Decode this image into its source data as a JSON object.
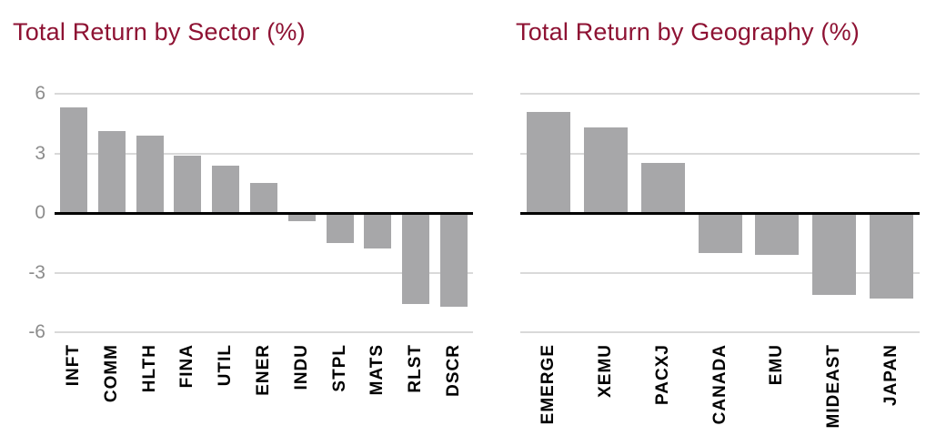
{
  "chart_data": [
    {
      "type": "bar",
      "title": "Total Return by Sector (%)",
      "categories": [
        "INFT",
        "COMM",
        "HLTH",
        "FINA",
        "UTIL",
        "ENER",
        "INDU",
        "STPL",
        "MATS",
        "RLST",
        "DSCR"
      ],
      "values": [
        5.3,
        4.1,
        3.9,
        2.9,
        2.4,
        1.5,
        -0.4,
        -1.5,
        -1.8,
        -4.6,
        -4.7
      ],
      "xlabel": "",
      "ylabel": "",
      "ylim": [
        -6,
        6
      ],
      "yticks": [
        6,
        3,
        0,
        -3,
        -6
      ],
      "ytick_labels": [
        "6",
        "3",
        "0",
        "-3",
        "-6"
      ],
      "show_ytick_labels": true,
      "grid": "horizontal",
      "legend": "none"
    },
    {
      "type": "bar",
      "title": "Total Return by Geography (%)",
      "categories": [
        "EMERGE",
        "XEMU",
        "PACXJ",
        "CANADA",
        "EMU",
        "MIDEAST",
        "JAPAN"
      ],
      "values": [
        5.1,
        4.3,
        2.5,
        -2.0,
        -2.1,
        -4.1,
        -4.3
      ],
      "xlabel": "",
      "ylabel": "",
      "ylim": [
        -6,
        6
      ],
      "yticks": [
        6,
        3,
        0,
        -3,
        -6
      ],
      "ytick_labels": [
        "6",
        "3",
        "0",
        "-3",
        "-6"
      ],
      "show_ytick_labels": false,
      "grid": "horizontal",
      "legend": "none"
    }
  ],
  "style": {
    "title_color": "#8E1233",
    "bar_color": "#A7A7A9",
    "gridline_color": "#D9D9D9",
    "zero_line_color": "#000000",
    "ytick_color": "#8C8C8C",
    "xlabel_color": "#000000",
    "background": "#FFFFFF"
  }
}
